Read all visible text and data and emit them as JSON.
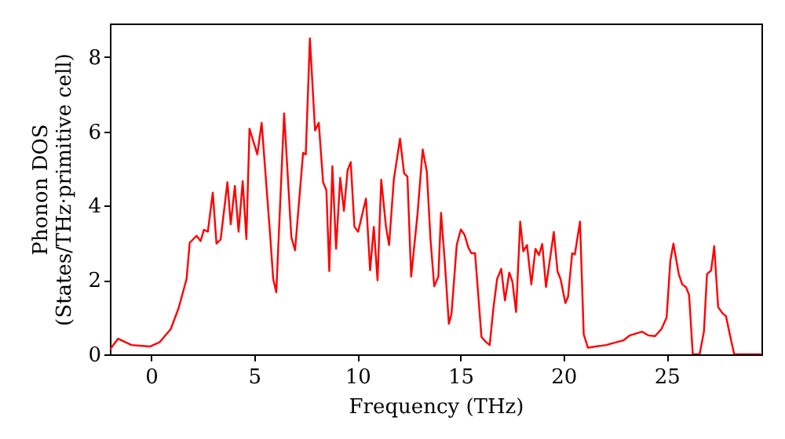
{
  "chart_data": {
    "type": "line",
    "xlabel": "Frequency (THz)",
    "ylabel": "Phonon DOS\n(States/THz·primitive cell)",
    "xlim": [
      -2,
      29.6
    ],
    "ylim": [
      0,
      8.9
    ],
    "xticks": [
      0,
      5,
      10,
      15,
      20,
      25
    ],
    "yticks": [
      0,
      2,
      4,
      6,
      8
    ],
    "series": [
      {
        "color": "#ff0000",
        "x": [
          -2,
          -1.6,
          -0.95,
          -0.06,
          0.42,
          0.95,
          1.33,
          1.72,
          1.87,
          2.2,
          2.4,
          2.56,
          2.75,
          2.99,
          3.17,
          3.37,
          3.7,
          3.86,
          4.06,
          4.24,
          4.44,
          4.62,
          4.77,
          5.15,
          5.36,
          5.77,
          5.92,
          6.07,
          6.45,
          6.8,
          6.98,
          7.37,
          7.5,
          7.7,
          7.95,
          8.13,
          8.34,
          8.5,
          8.64,
          8.79,
          8.97,
          9.17,
          9.35,
          9.53,
          9.68,
          9.86,
          10.04,
          10.42,
          10.62,
          10.8,
          10.98,
          11.16,
          11.39,
          11.54,
          11.77,
          12.07,
          12.27,
          12.43,
          12.61,
          12.92,
          13.17,
          13.37,
          13.55,
          13.73,
          13.93,
          14.06,
          14.24,
          14.44,
          14.57,
          14.82,
          15.02,
          15.2,
          15.38,
          15.53,
          15.71,
          16.02,
          16.22,
          16.42,
          16.6,
          16.78,
          16.98,
          17.16,
          17.37,
          17.52,
          17.7,
          17.9,
          18.05,
          18.23,
          18.44,
          18.64,
          18.81,
          18.97,
          19.15,
          19.33,
          19.53,
          19.71,
          19.86,
          20.09,
          20.22,
          20.42,
          20.55,
          20.8,
          20.98,
          21.18,
          22.07,
          22.58,
          22.89,
          23.22,
          23.8,
          24.11,
          24.44,
          24.75,
          25.0,
          25.18,
          25.33,
          25.59,
          25.76,
          25.94,
          26.09,
          26.27,
          26.6,
          26.81,
          26.96,
          27.16,
          27.31,
          27.5,
          27.72,
          27.88,
          28.11,
          28.28,
          29.58
        ],
        "values": [
          0.13,
          0.42,
          0.25,
          0.21,
          0.33,
          0.68,
          1.24,
          2.03,
          3.0,
          3.19,
          3.05,
          3.35,
          3.3,
          4.35,
          2.98,
          3.09,
          4.63,
          3.5,
          4.53,
          3.3,
          4.66,
          3.1,
          6.07,
          5.38,
          6.23,
          3.22,
          2.03,
          1.67,
          6.48,
          3.15,
          2.8,
          5.42,
          5.38,
          8.5,
          6.02,
          6.23,
          4.63,
          4.42,
          2.24,
          5.06,
          2.84,
          4.75,
          3.86,
          4.96,
          5.17,
          3.43,
          3.3,
          4.19,
          2.26,
          3.43,
          1.99,
          4.7,
          3.43,
          2.94,
          4.7,
          5.8,
          4.87,
          4.78,
          2.09,
          3.78,
          5.51,
          4.92,
          3.09,
          1.83,
          2.09,
          3.81,
          2.51,
          0.82,
          1.1,
          2.94,
          3.36,
          3.22,
          2.88,
          2.72,
          2.72,
          0.47,
          0.34,
          0.25,
          1.24,
          2.03,
          2.3,
          1.45,
          2.2,
          1.96,
          1.14,
          3.57,
          2.77,
          2.94,
          1.88,
          2.84,
          2.67,
          2.97,
          1.81,
          2.51,
          3.29,
          2.23,
          2.02,
          1.38,
          1.55,
          2.72,
          2.69,
          3.57,
          0.54,
          0.18,
          0.25,
          0.33,
          0.37,
          0.51,
          0.61,
          0.51,
          0.49,
          0.68,
          0.99,
          2.51,
          2.98,
          2.16,
          1.88,
          1.81,
          1.6,
          0,
          0,
          0.61,
          2.16,
          2.26,
          2.91,
          1.27,
          1.1,
          1.03,
          0.42,
          0,
          0
        ]
      }
    ]
  }
}
